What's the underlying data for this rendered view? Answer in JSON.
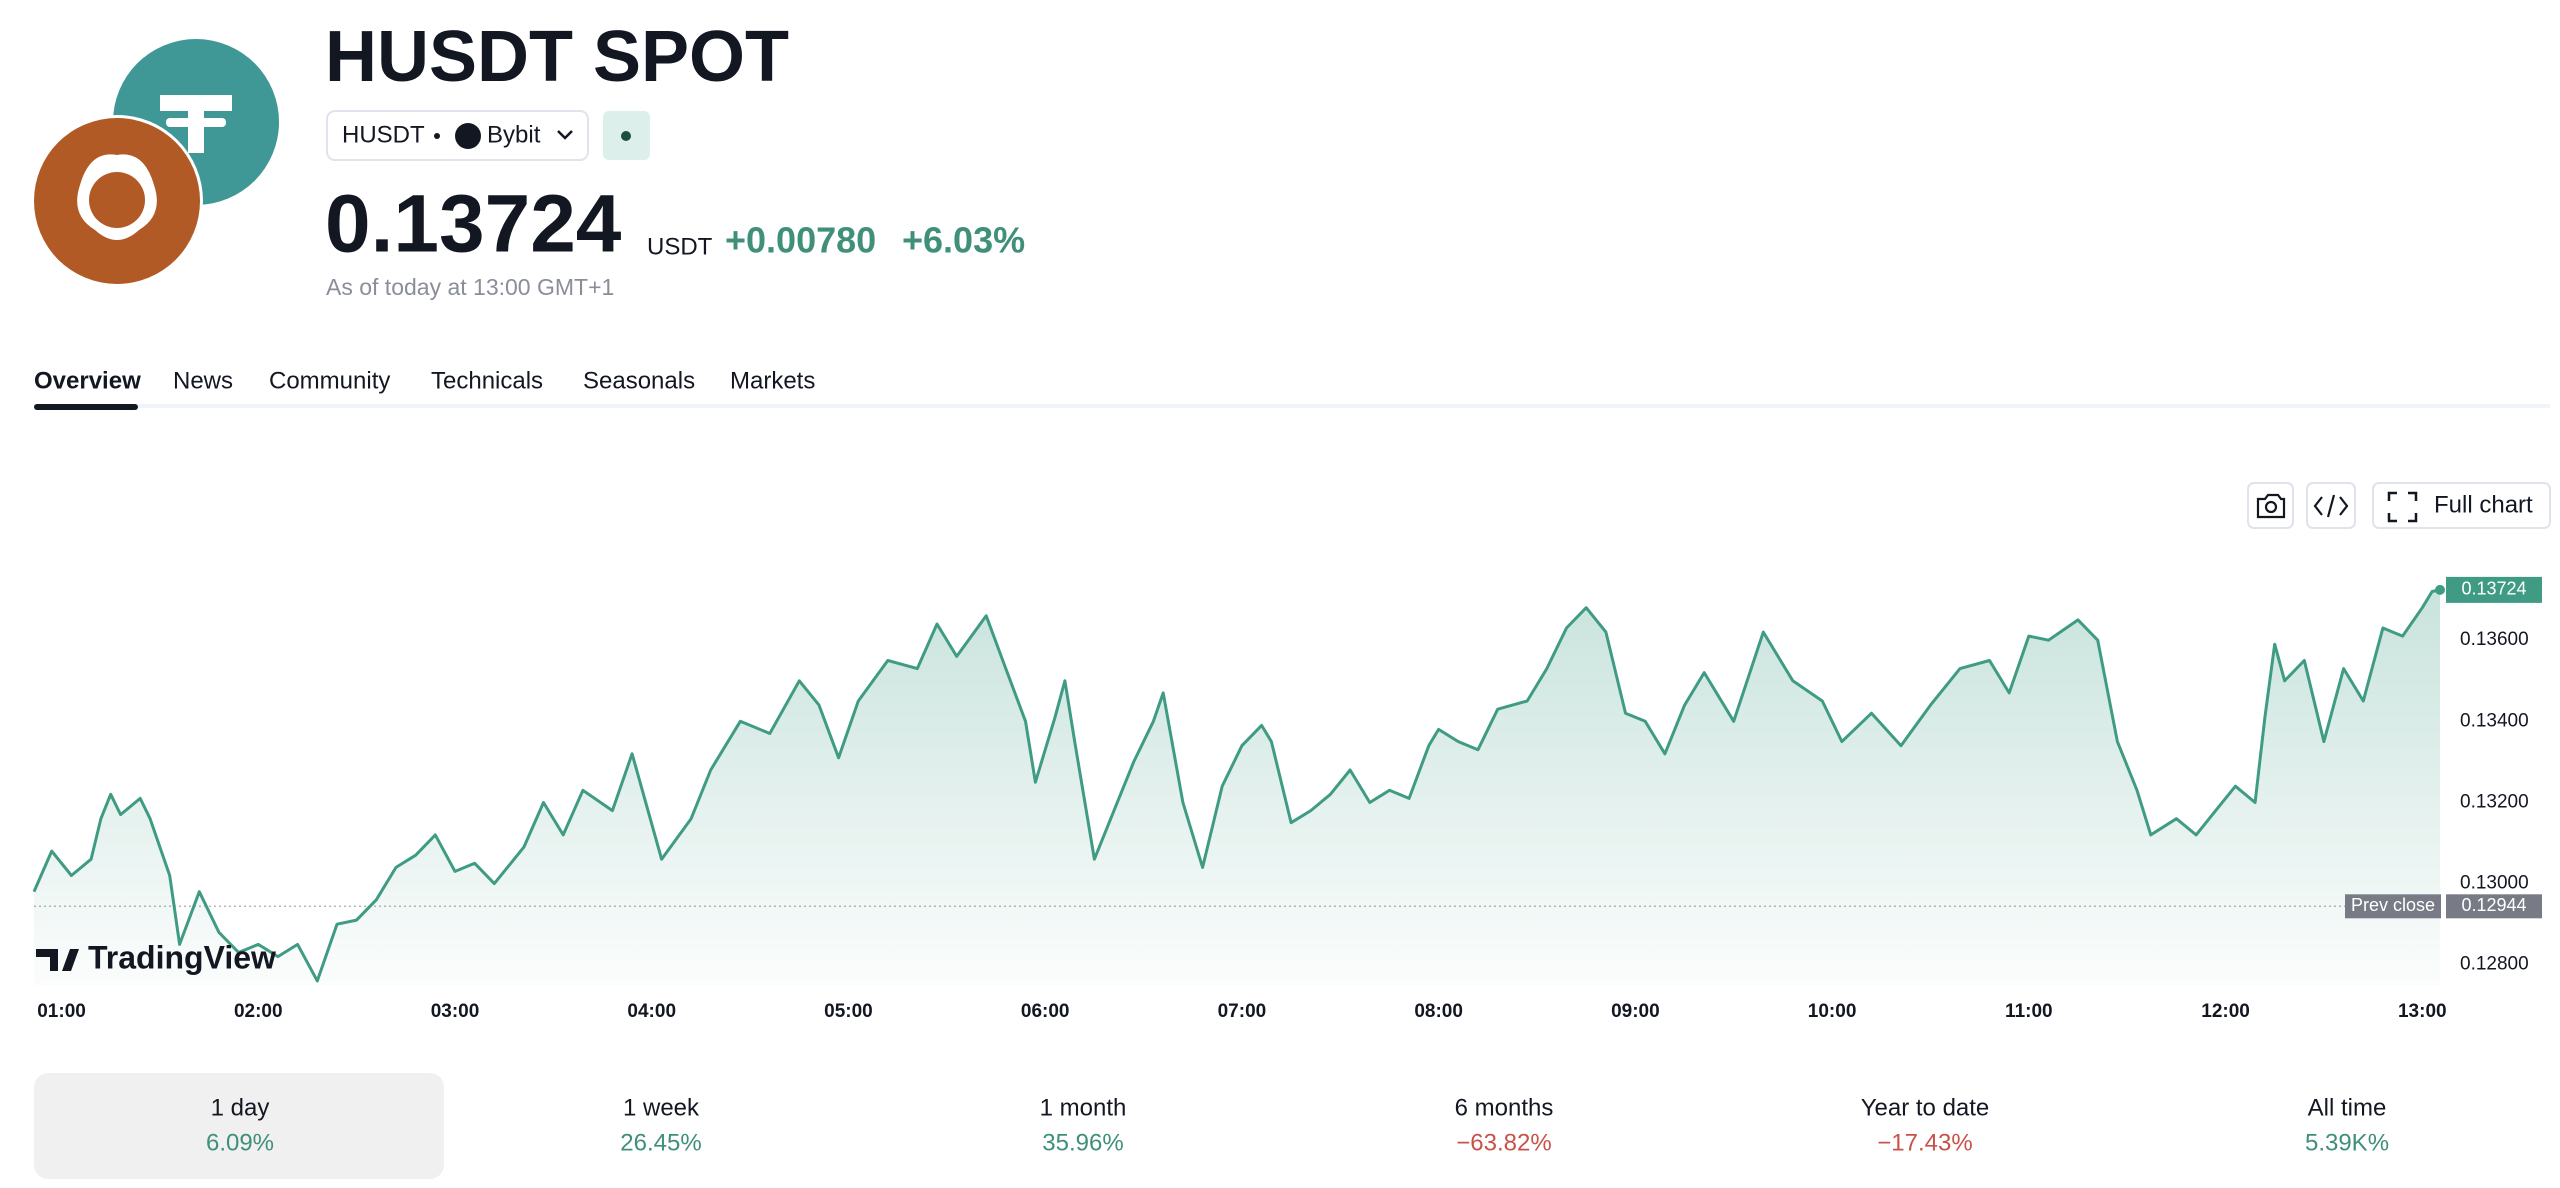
{
  "header": {
    "title": "HUSDT SPOT",
    "symbol": "HUSDT",
    "exchange": "Bybit",
    "price": "0.13724",
    "currency": "USDT",
    "change": "+0.00780",
    "change_percent": "+6.03%",
    "timestamp": "As of today at 13:00 GMT+1"
  },
  "tabs": [
    "Overview",
    "News",
    "Community",
    "Technicals",
    "Seasonals",
    "Markets"
  ],
  "toolbar": {
    "full_chart": "Full chart"
  },
  "chart_data": {
    "type": "line",
    "color": "#3f9b84",
    "x": [
      0.86,
      0.95,
      1.05,
      1.15,
      1.2,
      1.25,
      1.3,
      1.4,
      1.45,
      1.55,
      1.6,
      1.7,
      1.8,
      1.9,
      2.0,
      2.1,
      2.2,
      2.3,
      2.4,
      2.5,
      2.6,
      2.7,
      2.8,
      2.9,
      3.0,
      3.1,
      3.2,
      3.35,
      3.45,
      3.55,
      3.65,
      3.8,
      3.9,
      4.05,
      4.2,
      4.3,
      4.45,
      4.6,
      4.75,
      4.85,
      4.95,
      5.05,
      5.2,
      5.35,
      5.45,
      5.55,
      5.7,
      5.8,
      5.9,
      5.95,
      6.05,
      6.1,
      6.15,
      6.25,
      6.35,
      6.45,
      6.55,
      6.6,
      6.7,
      6.8,
      6.9,
      7.0,
      7.1,
      7.15,
      7.25,
      7.35,
      7.45,
      7.55,
      7.65,
      7.75,
      7.85,
      7.95,
      8.0,
      8.1,
      8.2,
      8.3,
      8.45,
      8.55,
      8.65,
      8.75,
      8.85,
      8.95,
      9.05,
      9.15,
      9.25,
      9.35,
      9.5,
      9.65,
      9.8,
      9.95,
      10.05,
      10.2,
      10.35,
      10.5,
      10.65,
      10.8,
      10.9,
      11.0,
      11.1,
      11.25,
      11.35,
      11.45,
      11.55,
      11.62,
      11.75,
      11.85,
      11.95,
      12.05,
      12.15,
      12.2,
      12.25,
      12.3,
      12.4,
      12.5,
      12.6,
      12.7,
      12.8,
      12.9,
      13.0,
      13.05,
      13.09
    ],
    "values": [
      0.1298,
      0.1308,
      0.1302,
      0.1306,
      0.1316,
      0.1322,
      0.1317,
      0.1321,
      0.1316,
      0.1302,
      0.1285,
      0.1298,
      0.1288,
      0.1283,
      0.1285,
      0.1282,
      0.1285,
      0.1276,
      0.129,
      0.1291,
      0.1296,
      0.1304,
      0.1307,
      0.1312,
      0.1303,
      0.1305,
      0.13,
      0.1309,
      0.132,
      0.1312,
      0.1323,
      0.1318,
      0.1332,
      0.1306,
      0.1316,
      0.1328,
      0.134,
      0.1337,
      0.135,
      0.1344,
      0.1331,
      0.1345,
      0.1355,
      0.1353,
      0.1364,
      0.1356,
      0.1366,
      0.1353,
      0.134,
      0.1325,
      0.1341,
      0.135,
      0.1335,
      0.1306,
      0.1318,
      0.133,
      0.134,
      0.1347,
      0.132,
      0.1304,
      0.1324,
      0.1334,
      0.1339,
      0.1335,
      0.1315,
      0.1318,
      0.1322,
      0.1328,
      0.132,
      0.1323,
      0.1321,
      0.1334,
      0.1338,
      0.1335,
      0.1333,
      0.1343,
      0.1345,
      0.1353,
      0.1363,
      0.1368,
      0.1362,
      0.1342,
      0.134,
      0.1332,
      0.1344,
      0.1352,
      0.134,
      0.1362,
      0.135,
      0.1345,
      0.1335,
      0.1342,
      0.1334,
      0.1344,
      0.1353,
      0.1355,
      0.1347,
      0.1361,
      0.136,
      0.1365,
      0.136,
      0.1335,
      0.1323,
      0.1312,
      0.1316,
      0.1312,
      0.1318,
      0.1324,
      0.132,
      0.1341,
      0.1359,
      0.135,
      0.1355,
      0.1335,
      0.1353,
      0.1345,
      0.1363,
      0.1361,
      0.1368,
      0.1372,
      0.13724
    ],
    "xlim": [
      0.86,
      13.09
    ],
    "ylim": [
      0.1275,
      0.1381
    ],
    "xticks": [
      {
        "value": 1,
        "label": "01:00"
      },
      {
        "value": 2,
        "label": "02:00"
      },
      {
        "value": 3,
        "label": "03:00"
      },
      {
        "value": 4,
        "label": "04:00"
      },
      {
        "value": 5,
        "label": "05:00"
      },
      {
        "value": 6,
        "label": "06:00"
      },
      {
        "value": 7,
        "label": "07:00"
      },
      {
        "value": 8,
        "label": "08:00"
      },
      {
        "value": 9,
        "label": "09:00"
      },
      {
        "value": 10,
        "label": "10:00"
      },
      {
        "value": 11,
        "label": "11:00"
      },
      {
        "value": 12,
        "label": "12:00"
      },
      {
        "value": 13,
        "label": "13:00"
      }
    ],
    "yticks": [
      {
        "value": 0.128,
        "label": "0.12800"
      },
      {
        "value": 0.13,
        "label": "0.13000"
      },
      {
        "value": 0.132,
        "label": "0.13200"
      },
      {
        "value": 0.134,
        "label": "0.13400"
      },
      {
        "value": 0.136,
        "label": "0.13600"
      }
    ],
    "prev_close": {
      "label": "Prev close",
      "value": 0.12944
    },
    "watermark": "TradingView"
  },
  "performance": [
    {
      "period": "1 day",
      "change": "6.09%",
      "direction": "up"
    },
    {
      "period": "1 week",
      "change": "26.45%",
      "direction": "up"
    },
    {
      "period": "1 month",
      "change": "35.96%",
      "direction": "up"
    },
    {
      "period": "6 months",
      "change": "−63.82%",
      "direction": "down"
    },
    {
      "period": "Year to date",
      "change": "−17.43%",
      "direction": "down"
    },
    {
      "period": "All time",
      "change": "5.39K%",
      "direction": "up"
    }
  ]
}
